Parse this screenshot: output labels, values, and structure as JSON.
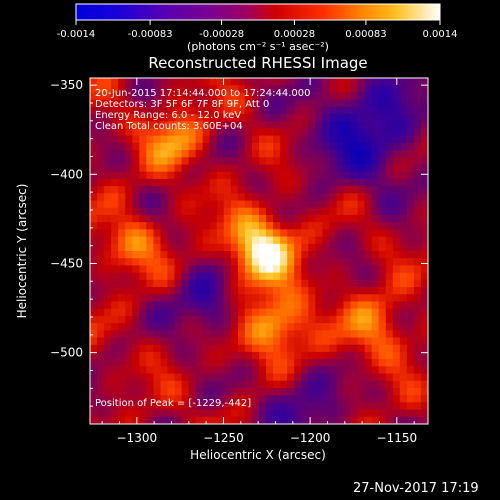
{
  "colorbar": {
    "ticks": [
      "-0.0014",
      "-0.00083",
      "-0.00028",
      "0.00028",
      "0.00083",
      "0.0014"
    ],
    "tick_values": [
      -0.0014,
      -0.00083,
      -0.00028,
      0.00028,
      0.00083,
      0.0014
    ],
    "range": [
      -0.0014,
      0.0014
    ],
    "units_label": "(photons cm⁻² s⁻¹ asec⁻²)"
  },
  "chart_data": {
    "type": "heatmap",
    "title": "Reconstructed RHESSI Image",
    "xlabel": "Heliocentric X (arcsec)",
    "ylabel": "Heliocentric Y (arcsec)",
    "xlim": [
      -1327,
      -1132
    ],
    "ylim": [
      -540,
      -346
    ],
    "xticks": [
      -1300,
      -1250,
      -1200,
      -1150
    ],
    "yticks": [
      -350,
      -400,
      -450,
      -500
    ],
    "colormap": "RHESSI red-temperature (blue-purple-red-orange-yellow-white)",
    "peak_position": [
      -1229,
      -442
    ],
    "annotations": [
      "20-Jun-2015 17:14:44.000 to 17:24:44.000",
      "Detectors: 3F 5F 6F 7F 8F 9F, Att 0",
      "Energy Range: 6.0 - 12.0 keV",
      "Clean     Total counts: 3.60E+04"
    ],
    "footer_annotation": "Position of Peak = [-1229,-442]"
  },
  "timestamp": "27-Nov-2017 17:19"
}
